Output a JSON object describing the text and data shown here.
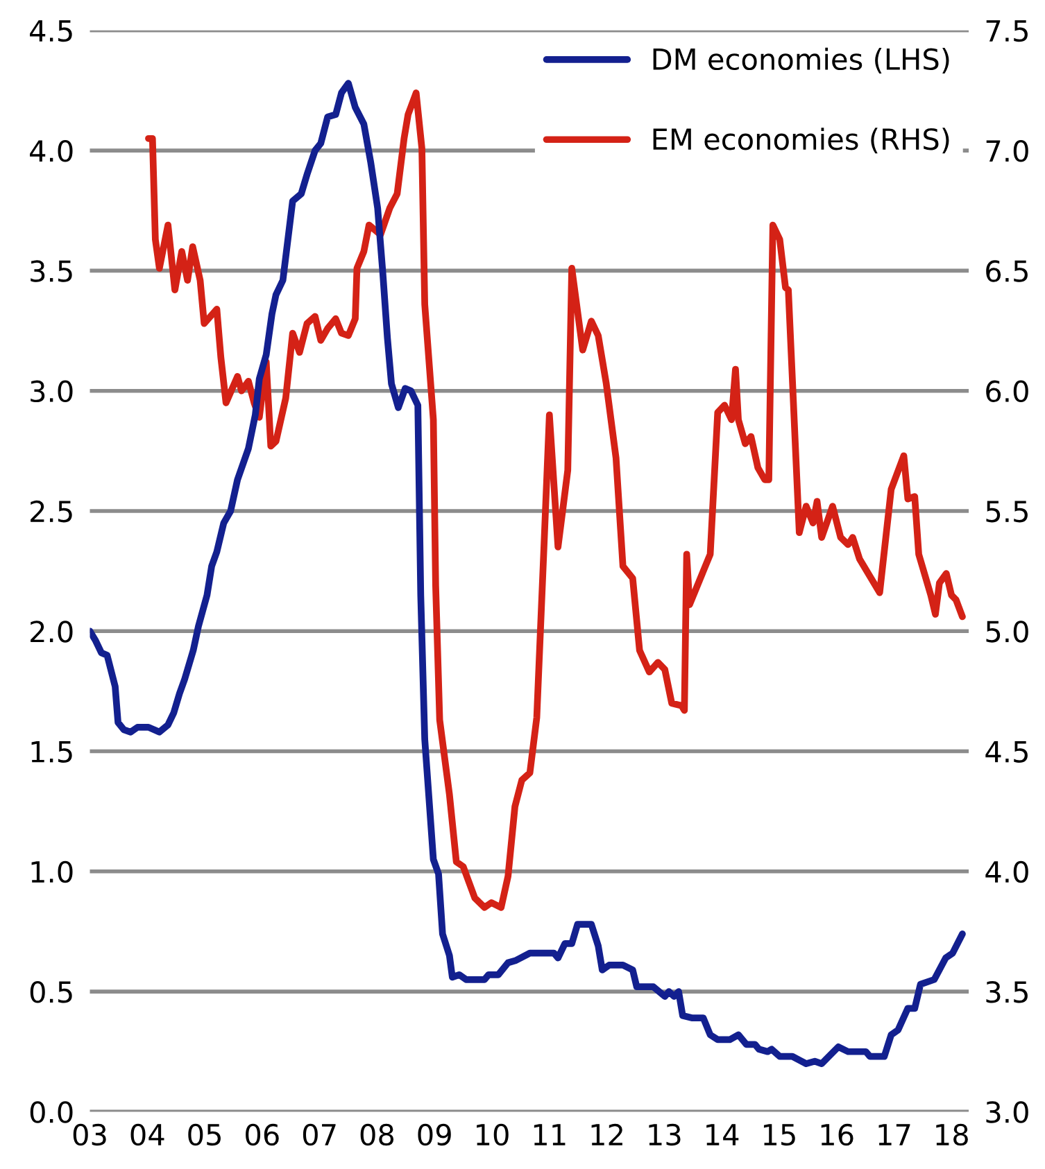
{
  "chart_data": {
    "type": "line",
    "x": [
      2003.0,
      2003.1,
      2003.2,
      2003.3,
      2003.44,
      2003.49,
      2003.59,
      2003.71,
      2003.83,
      2004.02,
      2004.21,
      2004.36,
      2004.46,
      2004.56,
      2004.65,
      2004.8,
      2004.89,
      2005.04,
      2005.12,
      2005.21,
      2005.33,
      2005.45,
      2005.57,
      2005.76,
      2005.88,
      2005.95,
      2006.07,
      2006.17,
      2006.24,
      2006.36,
      2006.53,
      2006.68,
      2006.78,
      2006.92,
      2007.02,
      2007.14,
      2007.28,
      2007.38,
      2007.5,
      2007.62,
      2007.77,
      2007.89,
      2008.01,
      2008.1,
      2008.18,
      2008.25,
      2008.37,
      2008.49,
      2008.59,
      2008.71,
      2008.76,
      2008.83,
      2008.98,
      2009.07,
      2009.14,
      2009.26,
      2009.31,
      2009.43,
      2009.55,
      2009.87,
      2009.94,
      2010.11,
      2010.28,
      2010.42,
      2010.66,
      2011.08,
      2011.15,
      2011.27,
      2011.39,
      2011.49,
      2011.73,
      2011.85,
      2011.92,
      2012.04,
      2012.28,
      2012.45,
      2012.52,
      2012.81,
      2013.01,
      2013.08,
      2013.17,
      2013.25,
      2013.32,
      2013.49,
      2013.68,
      2013.8,
      2013.93,
      2014.14,
      2014.29,
      2014.43,
      2014.58,
      2014.65,
      2014.8,
      2014.87,
      2015.01,
      2015.23,
      2015.47,
      2015.62,
      2015.74,
      2016.03,
      2016.2,
      2016.51,
      2016.58,
      2016.83,
      2016.95,
      2017.07,
      2017.24,
      2017.36,
      2017.46,
      2017.7,
      2017.9,
      2018.02,
      2018.19
    ],
    "series": [
      {
        "name": "DM economies (LHS)",
        "color": "#13208f",
        "values": [
          2.0,
          1.96,
          1.91,
          1.9,
          1.77,
          1.62,
          1.59,
          1.58,
          1.6,
          1.6,
          1.58,
          1.61,
          1.66,
          1.74,
          1.8,
          1.92,
          2.02,
          2.15,
          2.27,
          2.33,
          2.45,
          2.5,
          2.63,
          2.76,
          2.9,
          3.05,
          3.15,
          3.32,
          3.4,
          3.46,
          3.79,
          3.82,
          3.9,
          4.0,
          4.03,
          4.14,
          4.15,
          4.24,
          4.28,
          4.18,
          4.11,
          3.95,
          3.76,
          3.49,
          3.22,
          3.03,
          2.93,
          3.01,
          3.0,
          2.94,
          2.15,
          1.55,
          1.05,
          0.99,
          0.74,
          0.65,
          0.56,
          0.57,
          0.55,
          0.55,
          0.57,
          0.57,
          0.62,
          0.63,
          0.66,
          0.66,
          0.64,
          0.7,
          0.7,
          0.78,
          0.78,
          0.69,
          0.59,
          0.61,
          0.61,
          0.59,
          0.52,
          0.52,
          0.48,
          0.5,
          0.48,
          0.5,
          0.4,
          0.39,
          0.39,
          0.32,
          0.3,
          0.3,
          0.32,
          0.28,
          0.28,
          0.26,
          0.25,
          0.26,
          0.23,
          0.23,
          0.2,
          0.21,
          0.2,
          0.27,
          0.25,
          0.25,
          0.23,
          0.23,
          0.32,
          0.34,
          0.43,
          0.43,
          0.53,
          0.55,
          0.64,
          0.66,
          0.74
        ]
      },
      {
        "name": "EM economies (RHS)",
        "color": "#d42216",
        "axis": "y2",
        "x": [
          2004.02,
          2004.09,
          2004.14,
          2004.21,
          2004.36,
          2004.48,
          2004.6,
          2004.7,
          2004.79,
          2004.92,
          2004.99,
          2005.21,
          2005.28,
          2005.37,
          2005.57,
          2005.64,
          2005.76,
          2005.86,
          2005.95,
          2006.07,
          2006.15,
          2006.24,
          2006.41,
          2006.53,
          2006.65,
          2006.78,
          2006.92,
          2007.02,
          2007.14,
          2007.28,
          2007.38,
          2007.5,
          2007.62,
          2007.65,
          2007.77,
          2007.86,
          2008.06,
          2008.22,
          2008.35,
          2008.47,
          2008.54,
          2008.68,
          2008.78,
          2008.83,
          2008.98,
          2009.02,
          2009.09,
          2009.26,
          2009.38,
          2009.5,
          2009.7,
          2009.87,
          2009.99,
          2010.16,
          2010.28,
          2010.4,
          2010.52,
          2010.66,
          2010.78,
          2010.9,
          2011.0,
          2011.15,
          2011.32,
          2011.39,
          2011.58,
          2011.73,
          2011.85,
          2011.99,
          2012.16,
          2012.28,
          2012.45,
          2012.57,
          2012.74,
          2012.89,
          2013.01,
          2013.13,
          2013.3,
          2013.35,
          2013.39,
          2013.44,
          2013.8,
          2013.93,
          2014.05,
          2014.17,
          2014.24,
          2014.29,
          2014.41,
          2014.51,
          2014.63,
          2014.75,
          2014.82,
          2014.89,
          2015.01,
          2015.11,
          2015.16,
          2015.35,
          2015.47,
          2015.59,
          2015.66,
          2015.74,
          2015.93,
          2016.07,
          2016.2,
          2016.28,
          2016.4,
          2016.75,
          2016.95,
          2017.17,
          2017.24,
          2017.36,
          2017.43,
          2017.64,
          2017.72,
          2017.79,
          2017.91,
          2018.0,
          2018.08,
          2018.19
        ],
        "values": [
          7.05,
          7.05,
          6.63,
          6.51,
          6.69,
          6.42,
          6.58,
          6.46,
          6.6,
          6.46,
          6.28,
          6.34,
          6.14,
          5.95,
          6.06,
          6.0,
          6.04,
          5.95,
          5.89,
          6.12,
          5.77,
          5.79,
          5.97,
          6.24,
          6.16,
          6.28,
          6.31,
          6.21,
          6.26,
          6.3,
          6.24,
          6.23,
          6.3,
          6.51,
          6.58,
          6.69,
          6.65,
          6.76,
          6.82,
          7.05,
          7.15,
          7.24,
          7.01,
          6.36,
          5.88,
          5.19,
          4.63,
          4.32,
          4.04,
          4.02,
          3.89,
          3.85,
          3.87,
          3.85,
          3.98,
          4.27,
          4.38,
          4.41,
          4.64,
          5.32,
          5.9,
          5.35,
          5.67,
          6.51,
          6.17,
          6.29,
          6.23,
          6.03,
          5.72,
          5.27,
          5.22,
          4.92,
          4.83,
          4.87,
          4.84,
          4.7,
          4.69,
          4.67,
          5.32,
          5.11,
          5.32,
          5.91,
          5.94,
          5.88,
          6.09,
          5.88,
          5.78,
          5.81,
          5.68,
          5.63,
          5.63,
          6.69,
          6.63,
          6.43,
          6.42,
          5.41,
          5.52,
          5.45,
          5.54,
          5.39,
          5.52,
          5.39,
          5.36,
          5.39,
          5.3,
          5.16,
          5.59,
          5.73,
          5.55,
          5.56,
          5.32,
          5.15,
          5.07,
          5.2,
          5.24,
          5.15,
          5.13,
          5.06
        ]
      }
    ],
    "xlim": [
      2003.0,
      2018.3
    ],
    "xticks": [
      {
        "value": 2003,
        "label": "03"
      },
      {
        "value": 2004,
        "label": "04"
      },
      {
        "value": 2005,
        "label": "05"
      },
      {
        "value": 2006,
        "label": "06"
      },
      {
        "value": 2007,
        "label": "07"
      },
      {
        "value": 2008,
        "label": "08"
      },
      {
        "value": 2009,
        "label": "09"
      },
      {
        "value": 2010,
        "label": "10"
      },
      {
        "value": 2011,
        "label": "11"
      },
      {
        "value": 2012,
        "label": "12"
      },
      {
        "value": 2013,
        "label": "13"
      },
      {
        "value": 2014,
        "label": "14"
      },
      {
        "value": 2015,
        "label": "15"
      },
      {
        "value": 2016,
        "label": "16"
      },
      {
        "value": 2017,
        "label": "17"
      },
      {
        "value": 2018,
        "label": "18"
      }
    ],
    "ylim": [
      0,
      4.5
    ],
    "yticks": [
      {
        "value": 0,
        "label": "0.0"
      },
      {
        "value": 0.5,
        "label": "0.5"
      },
      {
        "value": 1,
        "label": "1.0"
      },
      {
        "value": 1.5,
        "label": "1.5"
      },
      {
        "value": 2,
        "label": "2.0"
      },
      {
        "value": 2.5,
        "label": "2.5"
      },
      {
        "value": 3,
        "label": "3.0"
      },
      {
        "value": 3.5,
        "label": "3.5"
      },
      {
        "value": 4,
        "label": "4.0"
      },
      {
        "value": 4.5,
        "label": "4.5"
      }
    ],
    "y2lim": [
      3,
      7.5
    ],
    "y2ticks": [
      {
        "value": 3,
        "label": "3.0"
      },
      {
        "value": 3.5,
        "label": "3.5"
      },
      {
        "value": 4,
        "label": "4.0"
      },
      {
        "value": 4.5,
        "label": "4.5"
      },
      {
        "value": 5,
        "label": "5.0"
      },
      {
        "value": 5.5,
        "label": "5.5"
      },
      {
        "value": 6,
        "label": "6.0"
      },
      {
        "value": 6.5,
        "label": "6.5"
      },
      {
        "value": 7,
        "label": "7.0"
      },
      {
        "value": 7.5,
        "label": "7.5"
      }
    ],
    "grid": "y",
    "legend": "top right"
  }
}
